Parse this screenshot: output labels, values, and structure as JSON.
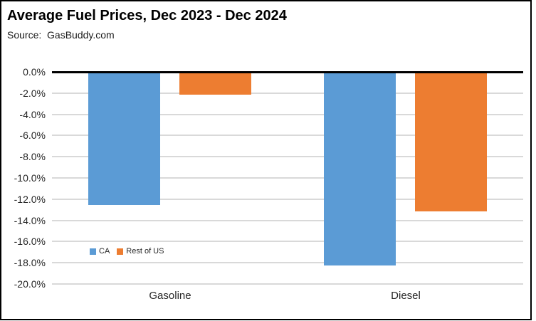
{
  "chart_data": {
    "type": "bar",
    "title": "Average Fuel Prices, Dec 2023 - Dec 2024",
    "subtitle": "Source:  GasBuddy.com",
    "categories": [
      "Gasoline",
      "Diesel"
    ],
    "series": [
      {
        "name": "CA",
        "color": "#5b9bd5",
        "values": [
          -12.5,
          -18.2
        ]
      },
      {
        "name": "Rest of US",
        "color": "#ed7d31",
        "values": [
          -2.1,
          -13.1
        ]
      }
    ],
    "ylabel": "",
    "xlabel": "",
    "ylim": [
      -20,
      0
    ],
    "ytick_step": 2,
    "ytick_labels": [
      "0.0%",
      "-2.0%",
      "-4.0%",
      "-6.0%",
      "-8.0%",
      "-10.0%",
      "-12.0%",
      "-14.0%",
      "-16.0%",
      "-18.0%",
      "-20.0%"
    ],
    "grid": true,
    "legend_position": "inside-bottom-left",
    "colors": {
      "gridline": "#d9d9d9",
      "zero_axis": "#000000",
      "text": "#262626",
      "background": "#ffffff",
      "border": "#000000"
    }
  }
}
